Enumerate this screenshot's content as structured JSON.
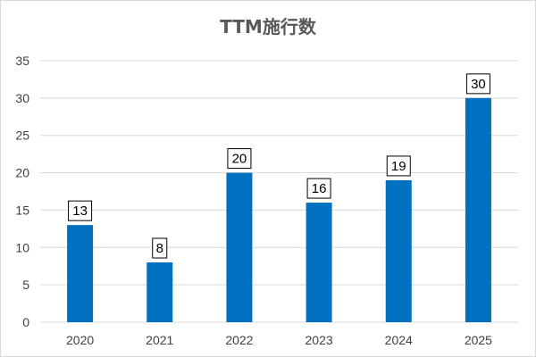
{
  "chart_data": {
    "type": "bar",
    "title": "TTM施行数",
    "categories": [
      "2020",
      "2021",
      "2022",
      "2023",
      "2024",
      "2025"
    ],
    "values": [
      13,
      8,
      20,
      16,
      19,
      30
    ],
    "ylim": [
      0,
      35
    ],
    "yticks": [
      0,
      5,
      10,
      15,
      20,
      25,
      30,
      35
    ],
    "grid": true,
    "legend": "none",
    "data_labels": true,
    "bar_color": "#0070c0",
    "grid_color": "#d9d9d9"
  }
}
